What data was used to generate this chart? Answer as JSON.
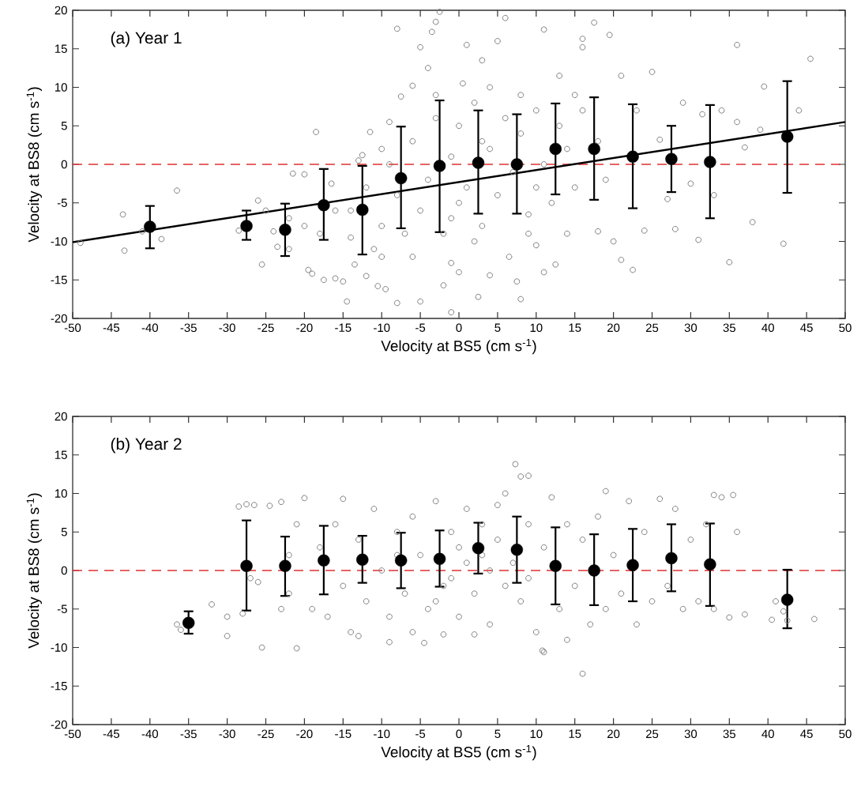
{
  "chart_data": [
    {
      "type": "scatter",
      "xlabel": "Velocity at BS5   (cm s$^{-1}$)",
      "ylabel": "Velocity at BS8   (cm s$^{-1}$)",
      "annotations": [
        "(a) Year 1"
      ],
      "xlim": [
        -50,
        50
      ],
      "ylim": [
        -20,
        20
      ],
      "xticks": [
        -50,
        -45,
        -40,
        -35,
        -30,
        -25,
        -20,
        -15,
        -10,
        -5,
        0,
        5,
        10,
        15,
        20,
        25,
        30,
        35,
        40,
        45,
        50
      ],
      "yticks": [
        -20,
        -15,
        -10,
        -5,
        0,
        5,
        10,
        15,
        20
      ],
      "ref_lines": [
        {
          "axis": "y",
          "value": 0,
          "color": "#e03030",
          "line_style": "dashed"
        }
      ],
      "series": [
        {
          "color": "#808080",
          "marker": "circle",
          "x": [
            -49,
            -43.5,
            -43.3,
            -41,
            -38.5,
            -36.5,
            -28.5,
            -26,
            -25,
            -24,
            -23.5,
            -25.5,
            -22,
            -21.5,
            -20,
            -19.5,
            -19,
            -18.5,
            -17.5,
            -16.5,
            -16,
            -15,
            -14.5,
            -13.5,
            -13,
            -12.5,
            -12,
            -11.5,
            -10.5,
            -10,
            -9.5,
            -9,
            -8,
            -8,
            -7.5,
            -6,
            -5,
            -5,
            -4,
            -3.5,
            -3,
            -2.5,
            -2,
            -1,
            -1,
            0,
            0.5,
            1,
            2.5,
            3,
            4,
            5,
            6,
            6.5,
            7.5,
            8,
            9,
            10,
            11,
            11,
            12.5,
            13,
            14,
            16,
            16,
            17.5,
            18,
            19.5,
            20,
            21,
            21,
            22.5,
            23,
            24,
            25,
            26,
            27,
            28,
            29,
            30,
            31,
            31.5,
            33,
            34,
            35,
            36,
            36,
            37,
            38,
            39,
            39.5,
            42,
            44,
            45.5,
            -14,
            -12,
            -10,
            -10,
            -8,
            -7,
            -6,
            -5,
            -4,
            -3,
            -2,
            -1,
            0,
            0,
            1,
            2,
            3,
            4,
            5,
            6,
            7,
            8,
            9,
            10,
            11,
            12,
            13,
            14,
            15,
            16,
            18,
            19,
            -18,
            -16,
            -20,
            -22,
            -11,
            -6,
            -3,
            2,
            4,
            8,
            10,
            15,
            -9,
            -14,
            3,
            -1
          ],
          "values": [
            -10.2,
            -6.5,
            -11.2,
            -8.7,
            -9.7,
            -3.4,
            -8.6,
            -4.7,
            -6,
            -8.7,
            -10.7,
            -13,
            -11,
            -1.2,
            -1.3,
            -13.7,
            -14.2,
            4.2,
            -15,
            -2.5,
            -14.8,
            -15.2,
            -17.8,
            -13,
            0.5,
            1.2,
            -14.5,
            4.2,
            -15.8,
            -12,
            -16.2,
            5.5,
            -18,
            17.6,
            8.8,
            10.2,
            15.2,
            -17.8,
            12.5,
            17.2,
            18.5,
            19.8,
            -15.7,
            -19.2,
            -12.8,
            -14,
            10.5,
            15.5,
            -17.2,
            13.5,
            -14.4,
            16,
            19,
            -12,
            -15.2,
            -17.5,
            -6.5,
            -10.5,
            17.5,
            -14,
            -13,
            11.5,
            -9,
            16.3,
            15.2,
            18.4,
            -8.7,
            16.8,
            -10,
            11.5,
            -12.4,
            -13.7,
            7,
            -8.6,
            12,
            3.2,
            -4.5,
            -8.4,
            8,
            -2.5,
            -9.8,
            6.5,
            -4,
            7,
            -12.7,
            15.5,
            5.5,
            2.2,
            -7.5,
            4.5,
            10.1,
            -10.3,
            7,
            13.7,
            -6,
            -3,
            -8,
            2,
            -4,
            -9,
            3,
            -6,
            -2,
            6,
            -9,
            1,
            -5,
            5,
            -3,
            8,
            -8,
            2,
            -4,
            6,
            -1,
            4,
            -9,
            7,
            0,
            -5,
            5,
            2,
            -3,
            7,
            3,
            -2,
            -9,
            -6,
            -8,
            -7,
            -11,
            -12,
            9,
            -10,
            10,
            9,
            -3,
            9,
            0,
            -9.5,
            3,
            -7
          ]
        },
        {
          "type": "line",
          "color": "#000000",
          "line_style": "solid",
          "x": [
            -50,
            50
          ],
          "values": [
            -10.1,
            5.5
          ]
        },
        {
          "color": "#000000",
          "marker": "circle",
          "x": [
            -40,
            -27.5,
            -22.5,
            -17.5,
            -12.5,
            -7.5,
            -2.5,
            2.5,
            7.5,
            12.5,
            17.5,
            22.5,
            27.5,
            32.5,
            42.5
          ],
          "values": [
            -8.1,
            -8.0,
            -8.5,
            -5.3,
            -5.9,
            -1.8,
            -0.2,
            0.2,
            0.0,
            2.0,
            2.0,
            1.0,
            0.7,
            0.3,
            3.6
          ],
          "errors": [
            [
              -10.9,
              -5.4
            ],
            [
              -9.8,
              -6.0
            ],
            [
              -11.9,
              -5.1
            ],
            [
              -9.8,
              -0.6
            ],
            [
              -11.7,
              -0.2
            ],
            [
              -8.3,
              4.9
            ],
            [
              -8.8,
              8.3
            ],
            [
              -6.4,
              7.0
            ],
            [
              -6.4,
              6.5
            ],
            [
              -3.9,
              7.9
            ],
            [
              -4.6,
              8.7
            ],
            [
              -5.7,
              7.8
            ],
            [
              -3.6,
              5.0
            ],
            [
              -7.0,
              7.7
            ],
            [
              -3.7,
              10.8
            ]
          ]
        }
      ]
    },
    {
      "type": "scatter",
      "xlabel": "Velocity at BS5   (cm s$^{-1}$)",
      "ylabel": "Velocity at BS8   (cm s$^{-1}$)",
      "annotations": [
        "(b) Year 2"
      ],
      "xlim": [
        -50,
        50
      ],
      "ylim": [
        -20,
        20
      ],
      "xticks": [
        -50,
        -45,
        -40,
        -35,
        -30,
        -25,
        -20,
        -15,
        -10,
        -5,
        0,
        5,
        10,
        15,
        20,
        25,
        30,
        35,
        40,
        45,
        50
      ],
      "yticks": [
        -20,
        -15,
        -10,
        -5,
        0,
        5,
        10,
        15,
        20
      ],
      "ref_lines": [
        {
          "axis": "y",
          "value": 0,
          "color": "#e03030",
          "line_style": "dashed"
        }
      ],
      "series": [
        {
          "color": "#808080",
          "marker": "circle",
          "x": [
            -28,
            -27,
            -26,
            -23,
            -22,
            -22,
            -21,
            -19,
            -18,
            -17,
            -16,
            -15,
            -14,
            -13,
            -12,
            -11,
            -10,
            -9,
            -8,
            -7,
            -6,
            -5,
            -4,
            -3,
            -2,
            -1,
            0,
            0,
            1,
            2,
            3,
            4,
            5,
            6,
            7,
            8,
            9,
            10,
            11,
            12,
            13,
            14,
            15,
            16,
            17,
            18,
            19,
            20,
            21,
            22,
            23,
            24,
            25,
            26,
            27,
            28,
            29,
            30,
            31,
            32,
            33,
            -13,
            -6,
            2,
            5,
            -3,
            1,
            3,
            9,
            -8,
            -1,
            4,
            6,
            -36.5,
            -36,
            -32,
            -30,
            -30,
            -28.5,
            -27.5,
            -26.5,
            -25.5,
            -24.5,
            -21,
            -23,
            -20,
            -15,
            7.3,
            8,
            9,
            19,
            35,
            40.5,
            42.5,
            46,
            41,
            42,
            11,
            16,
            14,
            36,
            33,
            34,
            35.5,
            37,
            -9,
            -4.5,
            -2,
            10.8
          ],
          "values": [
            -5.6,
            -1,
            -1.5,
            -5,
            -3,
            2,
            6,
            -5,
            3,
            -6,
            6,
            -2,
            -8,
            4,
            -4,
            8,
            0,
            -6,
            5,
            -3,
            7,
            2,
            -5,
            9,
            -2,
            5,
            -6,
            3,
            8,
            -3,
            6,
            -7,
            4,
            10,
            1,
            -4,
            6,
            -8,
            3,
            9.5,
            -5,
            6,
            -2,
            4,
            -7,
            7,
            -5,
            2,
            -3,
            9,
            -7,
            5,
            -4,
            9.3,
            -2,
            8,
            -5,
            4,
            -4,
            6,
            -5,
            -8.5,
            -8,
            -8.3,
            8.5,
            -4,
            1,
            2,
            -1,
            2,
            -1,
            0,
            -2,
            -7,
            -7.7,
            -4.4,
            -6,
            -8.5,
            8.3,
            8.6,
            8.5,
            -10,
            8.4,
            -10.1,
            8.9,
            9.4,
            9.3,
            13.8,
            12.2,
            12.3,
            10.3,
            -6.1,
            -6.4,
            -6.5,
            -6.3,
            -4,
            -5.3,
            -10.6,
            -13.4,
            -9,
            5,
            9.8,
            9.5,
            9.8,
            -5.7,
            -9.3,
            -9.4,
            -8.3,
            -10.4
          ]
        },
        {
          "color": "#000000",
          "marker": "circle",
          "x": [
            -35,
            -27.5,
            -22.5,
            -17.5,
            -12.5,
            -7.5,
            -2.5,
            2.5,
            7.5,
            12.5,
            17.5,
            22.5,
            27.5,
            32.5,
            42.5
          ],
          "values": [
            -6.8,
            0.6,
            0.6,
            1.3,
            1.4,
            1.3,
            1.5,
            2.9,
            2.7,
            0.6,
            0.0,
            0.7,
            1.6,
            0.8,
            -3.8
          ],
          "errors": [
            [
              -8.2,
              -5.3
            ],
            [
              -5.2,
              6.5
            ],
            [
              -3.3,
              4.4
            ],
            [
              -3.1,
              5.8
            ],
            [
              -1.6,
              4.5
            ],
            [
              -2.3,
              4.9
            ],
            [
              -2.1,
              5.2
            ],
            [
              -0.4,
              6.2
            ],
            [
              -1.6,
              7.0
            ],
            [
              -4.4,
              5.6
            ],
            [
              -4.5,
              4.7
            ],
            [
              -4.0,
              5.4
            ],
            [
              -2.7,
              6.0
            ],
            [
              -4.6,
              6.1
            ],
            [
              -7.5,
              0.1
            ]
          ]
        }
      ]
    }
  ]
}
